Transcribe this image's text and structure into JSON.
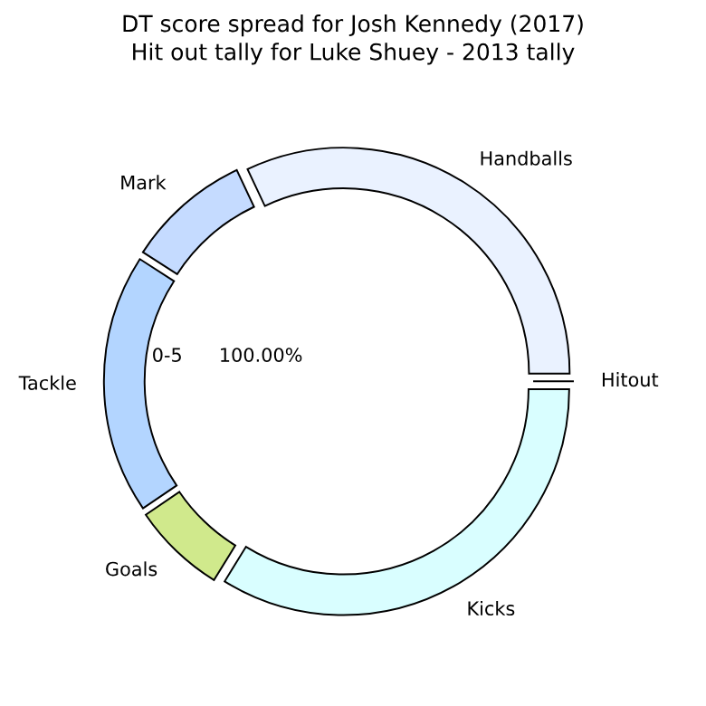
{
  "chart_data": {
    "type": "donut",
    "title": "DT score spread for Josh Kennedy (2017)",
    "subtitle": "Hit out tally for Luke Shuey - 2013 tally",
    "categories": [
      "Hitout",
      "Handballs",
      "Mark",
      "Tackle",
      "Goals",
      "Kicks"
    ],
    "values": [
      0,
      32,
      8.9,
      18.6,
      6.7,
      33.8
    ],
    "colors": [
      "#eaf2ff",
      "#eaf2ff",
      "#c5dbff",
      "#b3d5ff",
      "#d0e98c",
      "#d9feff"
    ],
    "annotations": [
      "0-5",
      "100.00%"
    ]
  }
}
